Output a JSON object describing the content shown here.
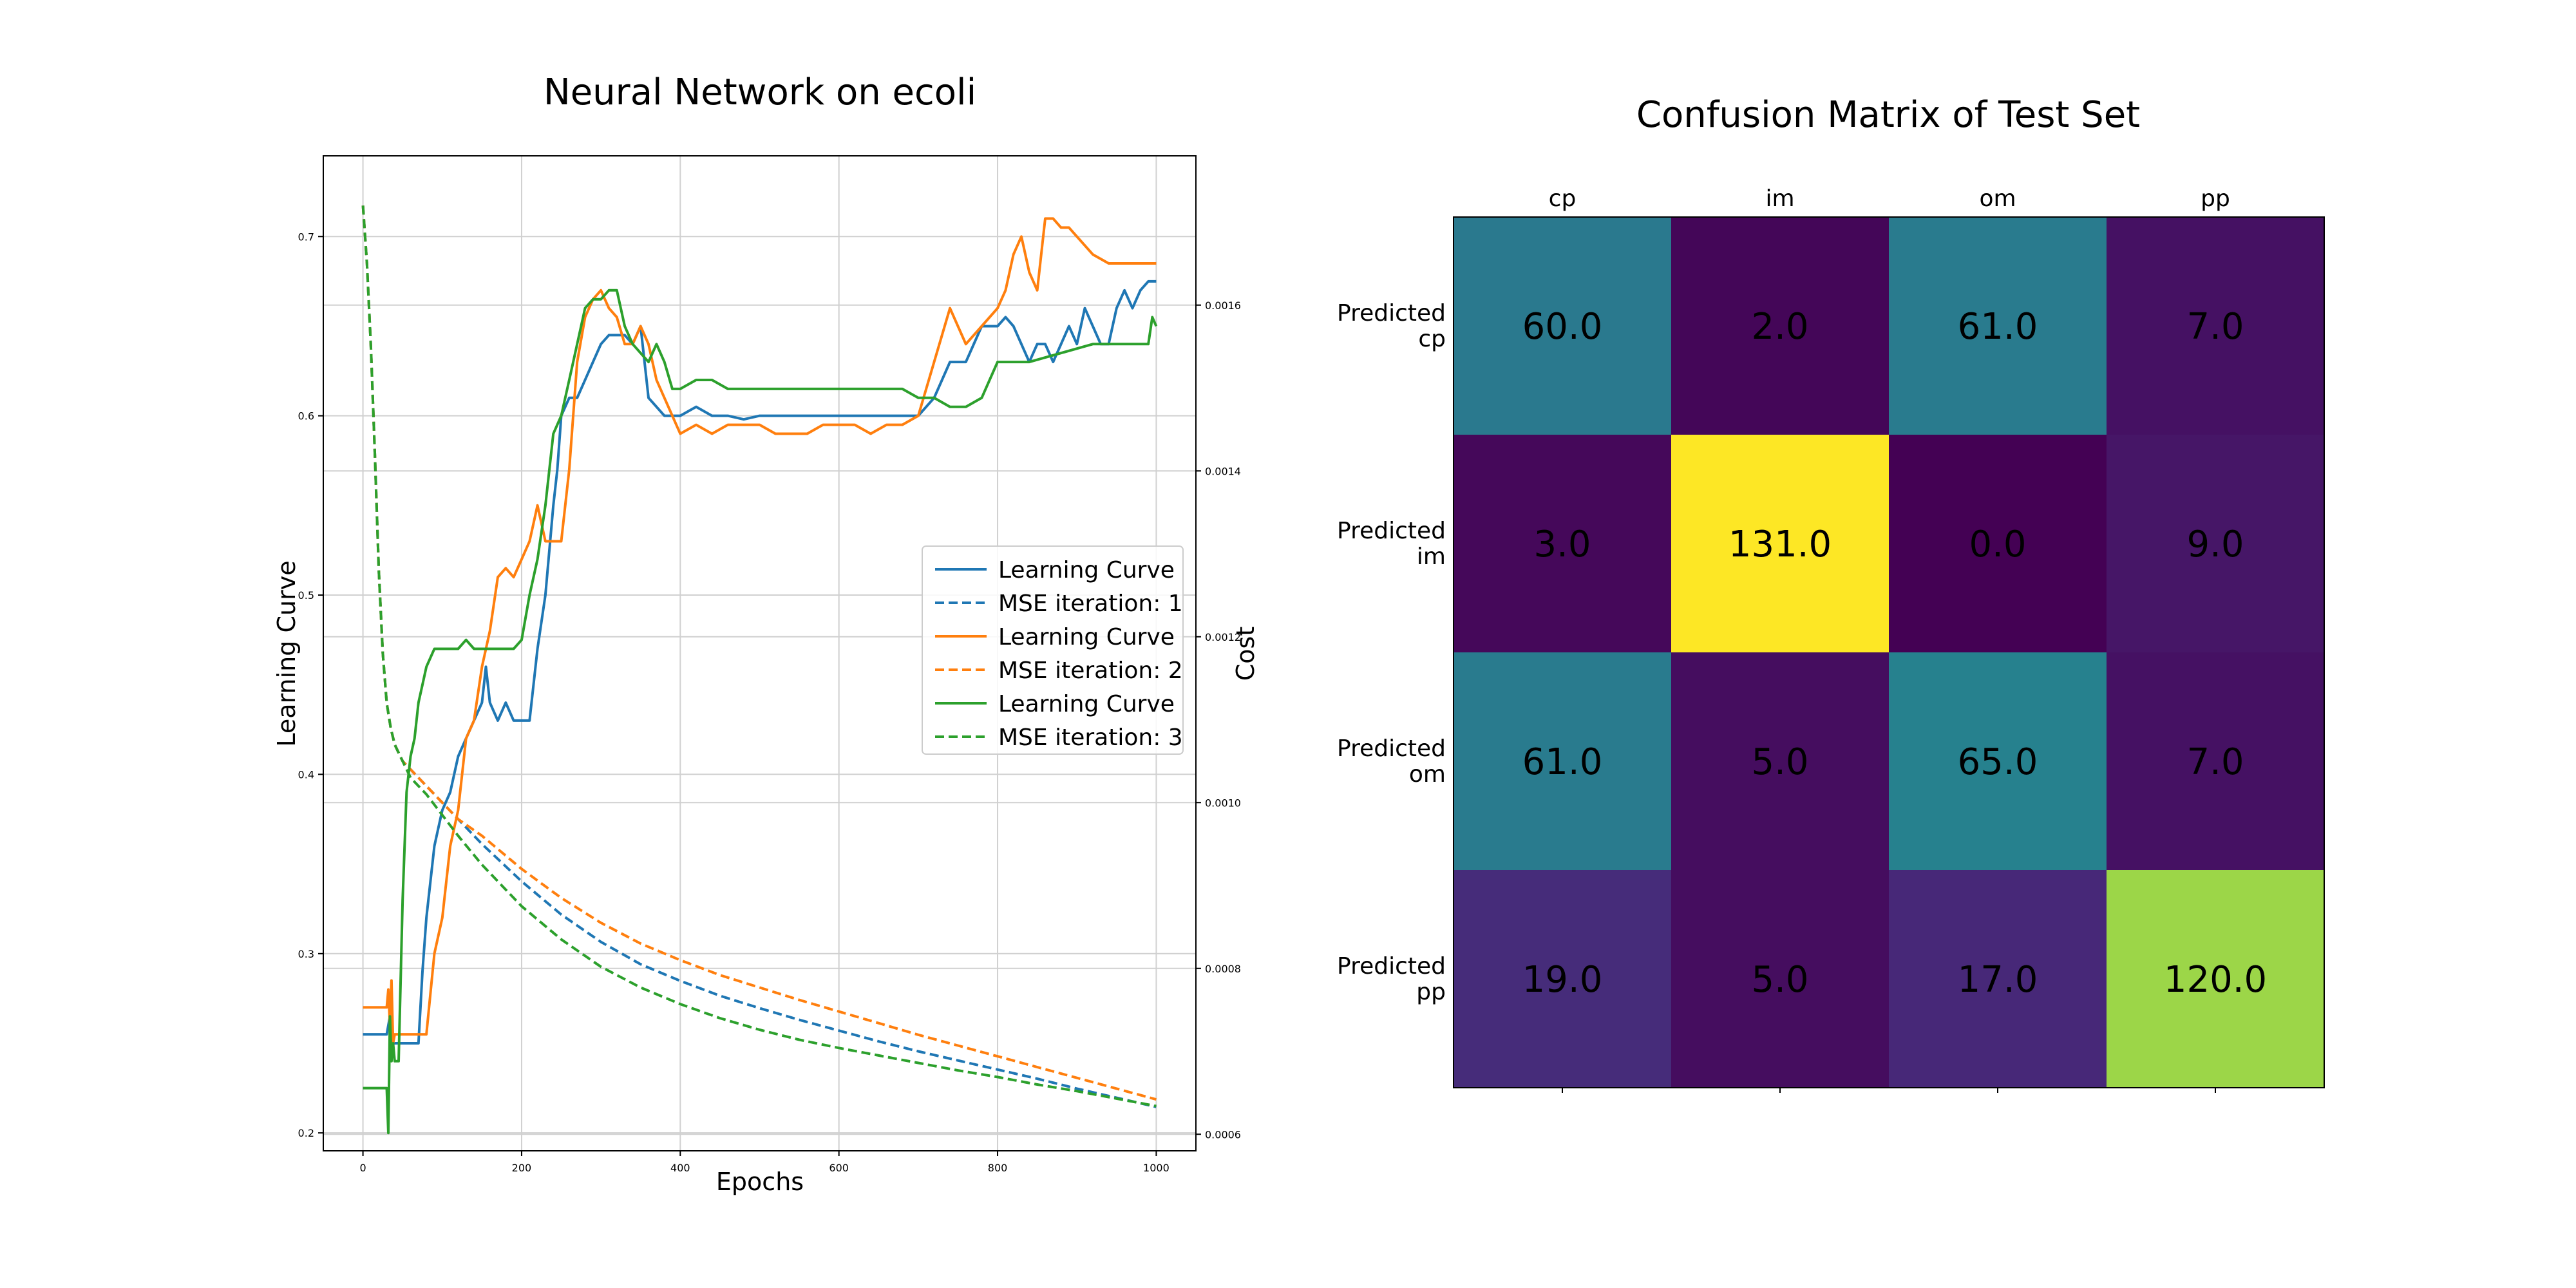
{
  "chart_data": [
    {
      "type": "line",
      "title": "Neural Network on ecoli",
      "xlabel": "Epochs",
      "ylabel": "Learning Curve",
      "y2label": "Cost",
      "xlim": [
        -50,
        1050
      ],
      "ylim": [
        0.19,
        0.745
      ],
      "y2lim": [
        0.00058,
        0.00178
      ],
      "x_ticks": [
        0,
        200,
        400,
        600,
        800,
        1000
      ],
      "y_ticks": [
        0.2,
        0.3,
        0.4,
        0.5,
        0.6,
        0.7
      ],
      "y2_ticks": [
        0.0006,
        0.0008,
        0.001,
        0.0012,
        0.0014,
        0.0016
      ],
      "x_tick_labels": [
        "0",
        "200",
        "400",
        "600",
        "800",
        "1000"
      ],
      "y_tick_labels": [
        "0.2",
        "0.3",
        "0.4",
        "0.5",
        "0.6",
        "0.7"
      ],
      "y2_tick_labels": [
        "0.0006",
        "0.0008",
        "0.0010",
        "0.0012",
        "0.0014",
        "0.0016"
      ],
      "grid": true,
      "legend_position": "center-right",
      "series": [
        {
          "name": "Learning Curve",
          "axis": "left",
          "style": "solid",
          "color": "#1f77b4",
          "x": [
            0,
            30,
            32,
            34,
            36,
            40,
            50,
            60,
            70,
            75,
            80,
            85,
            90,
            95,
            100,
            110,
            120,
            130,
            140,
            150,
            155,
            160,
            170,
            180,
            190,
            200,
            210,
            220,
            230,
            240,
            245,
            250,
            260,
            270,
            280,
            290,
            300,
            310,
            320,
            330,
            340,
            350,
            360,
            370,
            380,
            390,
            400,
            420,
            440,
            460,
            480,
            500,
            520,
            540,
            560,
            580,
            600,
            620,
            640,
            660,
            680,
            700,
            720,
            740,
            760,
            780,
            800,
            810,
            820,
            830,
            840,
            850,
            860,
            870,
            880,
            890,
            900,
            910,
            920,
            930,
            940,
            950,
            960,
            970,
            980,
            990,
            1000
          ],
          "y": [
            0.255,
            0.255,
            0.26,
            0.265,
            0.25,
            0.25,
            0.25,
            0.25,
            0.25,
            0.29,
            0.32,
            0.34,
            0.36,
            0.37,
            0.38,
            0.39,
            0.41,
            0.42,
            0.43,
            0.44,
            0.46,
            0.44,
            0.43,
            0.44,
            0.43,
            0.43,
            0.43,
            0.47,
            0.5,
            0.55,
            0.57,
            0.6,
            0.61,
            0.61,
            0.62,
            0.63,
            0.64,
            0.645,
            0.645,
            0.645,
            0.64,
            0.65,
            0.61,
            0.605,
            0.6,
            0.6,
            0.6,
            0.605,
            0.6,
            0.6,
            0.598,
            0.6,
            0.6,
            0.6,
            0.6,
            0.6,
            0.6,
            0.6,
            0.6,
            0.6,
            0.6,
            0.6,
            0.61,
            0.63,
            0.63,
            0.65,
            0.65,
            0.655,
            0.65,
            0.64,
            0.63,
            0.64,
            0.64,
            0.63,
            0.64,
            0.65,
            0.64,
            0.66,
            0.65,
            0.64,
            0.64,
            0.66,
            0.67,
            0.66,
            0.67,
            0.675,
            0.675
          ]
        },
        {
          "name": "MSE iteration: 1",
          "axis": "right",
          "style": "dashed",
          "color": "#1f77b4",
          "x": [
            0,
            5,
            10,
            15,
            20,
            25,
            30,
            35,
            40,
            45,
            50,
            60,
            70,
            80,
            100,
            120,
            150,
            200,
            250,
            300,
            350,
            400,
            450,
            500,
            550,
            600,
            650,
            700,
            750,
            800,
            850,
            900,
            950,
            1000
          ],
          "y": [
            0.00172,
            0.00165,
            0.00155,
            0.00142,
            0.00128,
            0.00118,
            0.00112,
            0.00109,
            0.00107,
            0.00106,
            0.00105,
            0.00104,
            0.00103,
            0.00102,
            0.001,
            0.00098,
            0.00095,
            0.000905,
            0.000865,
            0.000832,
            0.000805,
            0.000785,
            0.000767,
            0.000752,
            0.000738,
            0.000725,
            0.000712,
            0.0007,
            0.000689,
            0.000678,
            0.000667,
            0.000655,
            0.000644,
            0.000633
          ]
        },
        {
          "name": "Learning Curve",
          "axis": "left",
          "style": "solid",
          "color": "#ff7f0e",
          "x": [
            0,
            30,
            32,
            34,
            36,
            38,
            40,
            42,
            45,
            50,
            55,
            60,
            70,
            80,
            90,
            100,
            110,
            120,
            130,
            140,
            150,
            160,
            170,
            180,
            190,
            200,
            210,
            220,
            230,
            240,
            250,
            260,
            270,
            280,
            290,
            300,
            310,
            320,
            330,
            340,
            350,
            360,
            370,
            380,
            400,
            420,
            440,
            460,
            480,
            500,
            520,
            540,
            560,
            580,
            600,
            620,
            640,
            660,
            680,
            700,
            720,
            740,
            760,
            780,
            800,
            810,
            820,
            830,
            840,
            850,
            860,
            870,
            880,
            890,
            900,
            920,
            940,
            960,
            980,
            1000
          ],
          "y": [
            0.27,
            0.27,
            0.28,
            0.26,
            0.285,
            0.25,
            0.255,
            0.255,
            0.255,
            0.255,
            0.255,
            0.255,
            0.255,
            0.255,
            0.3,
            0.32,
            0.36,
            0.38,
            0.42,
            0.43,
            0.46,
            0.48,
            0.51,
            0.515,
            0.51,
            0.52,
            0.53,
            0.55,
            0.53,
            0.53,
            0.53,
            0.57,
            0.63,
            0.655,
            0.665,
            0.67,
            0.66,
            0.655,
            0.64,
            0.64,
            0.65,
            0.64,
            0.62,
            0.61,
            0.59,
            0.595,
            0.59,
            0.595,
            0.595,
            0.595,
            0.59,
            0.59,
            0.59,
            0.595,
            0.595,
            0.595,
            0.59,
            0.595,
            0.595,
            0.6,
            0.63,
            0.66,
            0.64,
            0.65,
            0.66,
            0.67,
            0.69,
            0.7,
            0.68,
            0.67,
            0.71,
            0.71,
            0.705,
            0.705,
            0.7,
            0.69,
            0.685,
            0.685,
            0.685,
            0.685
          ]
        },
        {
          "name": "MSE iteration: 2",
          "axis": "right",
          "style": "dashed",
          "color": "#ff7f0e",
          "x": [
            0,
            5,
            10,
            15,
            20,
            25,
            30,
            35,
            40,
            45,
            50,
            60,
            70,
            80,
            100,
            120,
            150,
            200,
            250,
            300,
            350,
            400,
            450,
            500,
            550,
            600,
            650,
            700,
            750,
            800,
            850,
            900,
            950,
            1000
          ],
          "y": [
            0.00172,
            0.00165,
            0.00155,
            0.00142,
            0.00128,
            0.00118,
            0.00112,
            0.00109,
            0.00107,
            0.00106,
            0.00105,
            0.00104,
            0.00103,
            0.00102,
            0.001,
            0.00098,
            0.00096,
            0.00092,
            0.000885,
            0.000855,
            0.00083,
            0.00081,
            0.000792,
            0.000777,
            0.000762,
            0.000748,
            0.000734,
            0.00072,
            0.000707,
            0.000694,
            0.000681,
            0.000668,
            0.000655,
            0.000642
          ]
        },
        {
          "name": "Learning Curve",
          "axis": "left",
          "style": "solid",
          "color": "#2ca02c",
          "x": [
            0,
            30,
            32,
            34,
            36,
            38,
            40,
            45,
            50,
            55,
            60,
            65,
            70,
            75,
            80,
            90,
            100,
            110,
            120,
            130,
            140,
            150,
            170,
            190,
            200,
            210,
            220,
            230,
            240,
            250,
            260,
            270,
            280,
            290,
            300,
            310,
            320,
            330,
            340,
            350,
            360,
            370,
            380,
            390,
            400,
            420,
            440,
            460,
            480,
            500,
            520,
            540,
            560,
            580,
            600,
            620,
            640,
            660,
            680,
            700,
            720,
            740,
            760,
            780,
            800,
            840,
            880,
            920,
            960,
            990,
            995,
            1000
          ],
          "y": [
            0.225,
            0.225,
            0.2,
            0.265,
            0.24,
            0.25,
            0.24,
            0.24,
            0.33,
            0.39,
            0.41,
            0.42,
            0.44,
            0.45,
            0.46,
            0.47,
            0.47,
            0.47,
            0.47,
            0.475,
            0.47,
            0.47,
            0.47,
            0.47,
            0.475,
            0.5,
            0.52,
            0.55,
            0.59,
            0.6,
            0.62,
            0.64,
            0.66,
            0.665,
            0.665,
            0.67,
            0.67,
            0.65,
            0.64,
            0.635,
            0.63,
            0.64,
            0.63,
            0.615,
            0.615,
            0.62,
            0.62,
            0.615,
            0.615,
            0.615,
            0.615,
            0.615,
            0.615,
            0.615,
            0.615,
            0.615,
            0.615,
            0.615,
            0.615,
            0.61,
            0.61,
            0.605,
            0.605,
            0.61,
            0.63,
            0.63,
            0.635,
            0.64,
            0.64,
            0.64,
            0.655,
            0.65
          ]
        },
        {
          "name": "MSE iteration: 3",
          "axis": "right",
          "style": "dashed",
          "color": "#2ca02c",
          "x": [
            0,
            5,
            10,
            15,
            20,
            25,
            30,
            35,
            40,
            45,
            50,
            60,
            70,
            80,
            100,
            120,
            150,
            200,
            250,
            300,
            350,
            400,
            450,
            500,
            550,
            600,
            650,
            700,
            750,
            800,
            850,
            900,
            950,
            1000
          ],
          "y": [
            0.00172,
            0.00165,
            0.00155,
            0.00142,
            0.00128,
            0.00118,
            0.00112,
            0.00109,
            0.00107,
            0.00106,
            0.00105,
            0.00103,
            0.00102,
            0.00101,
            0.000985,
            0.00096,
            0.000925,
            0.000875,
            0.000835,
            0.000802,
            0.000777,
            0.000757,
            0.00074,
            0.000726,
            0.000714,
            0.000704,
            0.000695,
            0.000686,
            0.000677,
            0.000669,
            0.00066,
            0.000652,
            0.000643,
            0.000634
          ]
        }
      ]
    },
    {
      "type": "heatmap",
      "title": "Confusion Matrix of Test Set",
      "columns": [
        "cp",
        "im",
        "om",
        "pp"
      ],
      "rows": [
        "Predicted\ncp",
        "Predicted\nim",
        "Predicted\nom",
        "Predicted\npp"
      ],
      "values": [
        [
          60.0,
          2.0,
          61.0,
          7.0
        ],
        [
          3.0,
          131.0,
          0.0,
          9.0
        ],
        [
          61.0,
          5.0,
          65.0,
          7.0
        ],
        [
          19.0,
          5.0,
          17.0,
          120.0
        ]
      ],
      "value_labels": [
        [
          "60.0",
          "2.0",
          "61.0",
          "7.0"
        ],
        [
          "3.0",
          "131.0",
          "0.0",
          "9.0"
        ],
        [
          "61.0",
          "5.0",
          "65.0",
          "7.0"
        ],
        [
          "19.0",
          "5.0",
          "17.0",
          "120.0"
        ]
      ],
      "colormap": "viridis",
      "vmin": 0,
      "vmax": 131
    }
  ]
}
